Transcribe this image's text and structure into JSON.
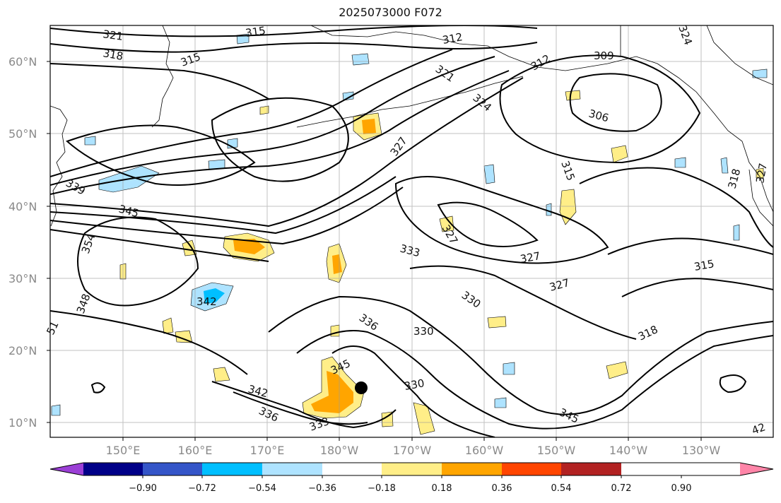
{
  "title": "2025073000 F072",
  "colors": {
    "contour": "#000000",
    "grid": "#9a9a9a",
    "coast": "#000000"
  },
  "lat_labels": [
    "10°N",
    "20°N",
    "30°N",
    "40°N",
    "50°N",
    "60°N"
  ],
  "lon_labels": [
    "150°E",
    "160°E",
    "170°E",
    "180°W",
    "170°W",
    "160°W",
    "150°W",
    "140°W",
    "130°W"
  ],
  "colorbar": {
    "colors": [
      "#9b3fd6",
      "#000088",
      "#3455c8",
      "#00bfff",
      "#aee3ff",
      "#ffffff",
      "#ffee88",
      "#ffa500",
      "#ff4500",
      "#b22222",
      "#ff85a8"
    ],
    "tick_labels": [
      "−0.90",
      "−0.72",
      "−0.54",
      "−0.36",
      "−0.18",
      "0.18",
      "0.36",
      "0.54",
      "0.72",
      "0.90"
    ]
  },
  "contour_labels": [
    "321",
    "318",
    "315",
    "315",
    "312",
    "309",
    "312",
    "324",
    "321",
    "324",
    "306",
    "327",
    "315",
    "318",
    "327",
    "339",
    "345",
    "354",
    "348",
    "342",
    "333",
    "327",
    "327",
    "315",
    "330",
    "336",
    "330",
    "318",
    "345",
    "342",
    "336",
    "333",
    "330",
    "345",
    "42",
    "51",
    "327"
  ],
  "marker": {
    "name": "black-dot"
  }
}
